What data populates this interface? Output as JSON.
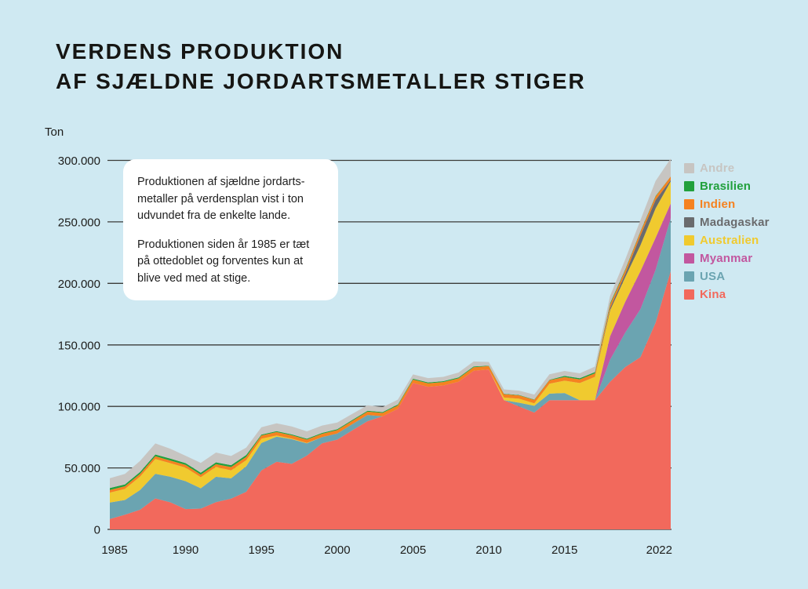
{
  "title": {
    "line1": "VERDENS PRODUKTION",
    "line2": "AF SJÆLDNE JORDARTSMETALLER STIGER"
  },
  "annotation": {
    "paragraph1": "Produktionen af sjældne jordarts-\nmetaller på verdensplan vist i ton\nudvundet fra de enkelte lande.",
    "paragraph2": "Produktionen siden år 1985 er tæt\npå ottedoblet og forventes kun at\nblive ved med at stige."
  },
  "colors": {
    "background": "#cfe9f2",
    "text": "#1d1d1b",
    "gridline": "#3c3c3a",
    "annotation_background": "#ffffff"
  },
  "chart_data": {
    "type": "area",
    "stacked": true,
    "title": "Verdens produktion af sjældne jordartsmetaller stiger",
    "ylabel": "Ton",
    "unit_label": "Ton",
    "grid": true,
    "legend_position": "right",
    "ylim": [
      0,
      300000
    ],
    "y_ticks": [
      0,
      50000,
      100000,
      150000,
      200000,
      250000,
      300000
    ],
    "y_tick_labels": [
      "0",
      "50.000",
      "100.000",
      "150.000",
      "200.000",
      "250.000",
      "300.000"
    ],
    "x_ticks": [
      1985,
      1990,
      1995,
      2000,
      2005,
      2010,
      2015,
      2022
    ],
    "x_tick_labels": [
      "1985",
      "1990",
      "1995",
      "2000",
      "2005",
      "2010",
      "2015",
      "2022"
    ],
    "x": [
      1985,
      1986,
      1987,
      1988,
      1989,
      1990,
      1991,
      1992,
      1993,
      1994,
      1995,
      1996,
      1997,
      1998,
      1999,
      2000,
      2001,
      2002,
      2003,
      2004,
      2005,
      2006,
      2007,
      2008,
      2009,
      2010,
      2011,
      2012,
      2013,
      2014,
      2015,
      2016,
      2017,
      2018,
      2019,
      2020,
      2021,
      2022
    ],
    "legend": [
      {
        "label": "Andre",
        "color": "#c7c5c2"
      },
      {
        "label": "Brasilien",
        "color": "#22a03c"
      },
      {
        "label": "Indien",
        "color": "#f58220"
      },
      {
        "label": "Madagaskar",
        "color": "#6a6b6d"
      },
      {
        "label": "Australien",
        "color": "#f0ca2f"
      },
      {
        "label": "Myanmar",
        "color": "#c2579f"
      },
      {
        "label": "USA",
        "color": "#6ba4b1"
      },
      {
        "label": "Kina",
        "color": "#f2695c"
      }
    ],
    "series": [
      {
        "name": "Kina",
        "values": [
          8500,
          11900,
          16000,
          25200,
          22000,
          16500,
          16900,
          22100,
          25000,
          30600,
          48000,
          55000,
          53300,
          60000,
          70000,
          73000,
          80600,
          88000,
          92000,
          98000,
          119000,
          116000,
          117000,
          120000,
          129000,
          130000,
          105000,
          100000,
          95000,
          105000,
          105000,
          105000,
          105000,
          120000,
          132000,
          140000,
          168000,
          210000
        ]
      },
      {
        "name": "USA",
        "values": [
          13400,
          12000,
          16000,
          20000,
          20800,
          22700,
          16500,
          20700,
          16500,
          20700,
          22200,
          20400,
          20000,
          10000,
          5000,
          5000,
          5000,
          5000,
          0,
          0,
          0,
          0,
          0,
          0,
          0,
          0,
          0,
          3000,
          5500,
          5400,
          5900,
          0,
          0,
          18000,
          28000,
          39000,
          43000,
          43000
        ]
      },
      {
        "name": "Myanmar",
        "values": [
          0,
          0,
          0,
          0,
          0,
          0,
          0,
          0,
          0,
          0,
          0,
          0,
          0,
          0,
          0,
          0,
          0,
          0,
          0,
          0,
          0,
          0,
          0,
          0,
          0,
          0,
          0,
          0,
          0,
          0,
          0,
          0,
          0,
          19000,
          25000,
          31000,
          26000,
          12000
        ]
      },
      {
        "name": "Australien",
        "values": [
          8000,
          9000,
          11000,
          12000,
          11000,
          11000,
          9000,
          8000,
          6500,
          5000,
          3500,
          1000,
          500,
          300,
          0,
          0,
          0,
          0,
          0,
          0,
          0,
          0,
          0,
          0,
          0,
          0,
          2200,
          3200,
          2000,
          8000,
          10000,
          14000,
          19000,
          21000,
          20000,
          21000,
          24000,
          18000
        ]
      },
      {
        "name": "Madagaskar",
        "values": [
          0,
          0,
          0,
          0,
          0,
          0,
          0,
          0,
          0,
          0,
          0,
          0,
          0,
          0,
          0,
          0,
          0,
          0,
          0,
          0,
          0,
          0,
          0,
          0,
          0,
          0,
          0,
          0,
          0,
          0,
          0,
          0,
          0,
          2000,
          2800,
          8000,
          6800,
          1000
        ]
      },
      {
        "name": "Indien",
        "values": [
          2200,
          2200,
          2200,
          2200,
          2200,
          2200,
          2200,
          2200,
          2700,
          2700,
          2700,
          2700,
          2700,
          2700,
          2700,
          2700,
          2700,
          2700,
          2700,
          2800,
          2800,
          2800,
          2800,
          2800,
          2800,
          2800,
          2800,
          2800,
          2800,
          2900,
          2900,
          2900,
          2900,
          2900,
          2900,
          2900,
          2900,
          2900
        ]
      },
      {
        "name": "Brasilien",
        "values": [
          1500,
          1500,
          1500,
          1500,
          1500,
          1500,
          1500,
          1500,
          1500,
          1500,
          700,
          700,
          700,
          700,
          700,
          700,
          700,
          700,
          700,
          700,
          700,
          700,
          700,
          700,
          700,
          300,
          300,
          300,
          300,
          300,
          1000,
          1000,
          1000,
          1000,
          700,
          600,
          500,
          100
        ]
      },
      {
        "name": "Andre",
        "values": [
          8000,
          8500,
          9000,
          9000,
          8000,
          6000,
          8000,
          8000,
          7500,
          6000,
          6000,
          6500,
          6500,
          6000,
          6000,
          5500,
          5000,
          4500,
          4000,
          4000,
          3500,
          3500,
          3500,
          4000,
          4000,
          3000,
          3500,
          3500,
          4000,
          4500,
          4000,
          4000,
          4500,
          6000,
          8000,
          9000,
          12000,
          14500
        ]
      }
    ]
  }
}
